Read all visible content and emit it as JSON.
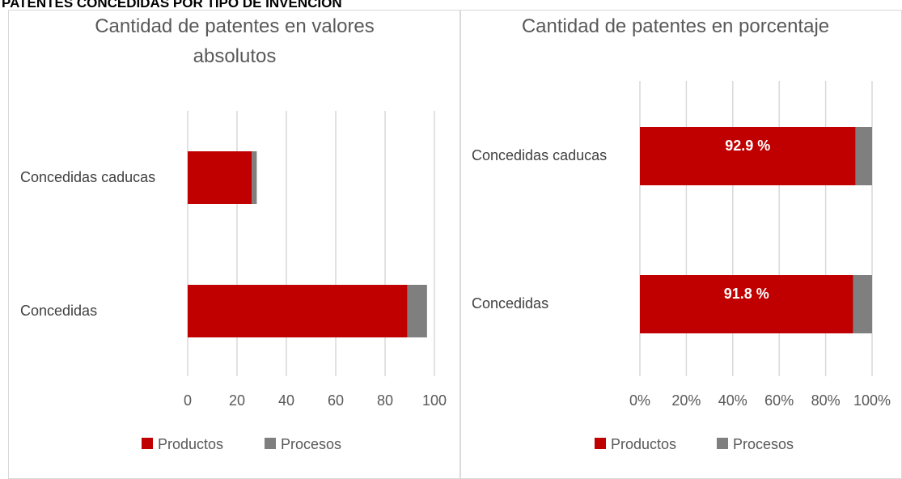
{
  "header": {
    "title": "PATENTES CONCEDIDAS POR TIPO DE INVENCIÓN"
  },
  "chart_data": [
    {
      "type": "stacked-barh",
      "title": "Cantidad de patentes en valores absolutos",
      "categories": [
        "Concedidas caducas",
        "Concedidas"
      ],
      "series": [
        {
          "name": "Productos",
          "color": "#c00000",
          "values": [
            26,
            89
          ]
        },
        {
          "name": "Procesos",
          "color": "#7f7f7f",
          "values": [
            2,
            8
          ]
        }
      ],
      "xlim": [
        0,
        100
      ],
      "xticks": [
        0,
        20,
        40,
        60,
        80,
        100
      ],
      "grid": true,
      "legend": "bottom"
    },
    {
      "type": "stacked-barh",
      "title": "Cantidad de patentes en porcentaje",
      "categories": [
        "Concedidas caducas",
        "Concedidas"
      ],
      "series": [
        {
          "name": "Productos",
          "color": "#c00000",
          "values": [
            92.9,
            91.8
          ],
          "value_labels": [
            "92.9 %",
            "91.8 %"
          ]
        },
        {
          "name": "Procesos",
          "color": "#7f7f7f",
          "values": [
            7.1,
            8.2
          ]
        }
      ],
      "xlim": [
        0,
        100
      ],
      "xticks": [
        {
          "value": 0,
          "label": "0%"
        },
        {
          "value": 20,
          "label": "20%"
        },
        {
          "value": 40,
          "label": "40%"
        },
        {
          "value": 60,
          "label": "60%"
        },
        {
          "value": 80,
          "label": "80%"
        },
        {
          "value": 100,
          "label": "100%"
        }
      ],
      "grid": true,
      "legend": "bottom"
    }
  ]
}
